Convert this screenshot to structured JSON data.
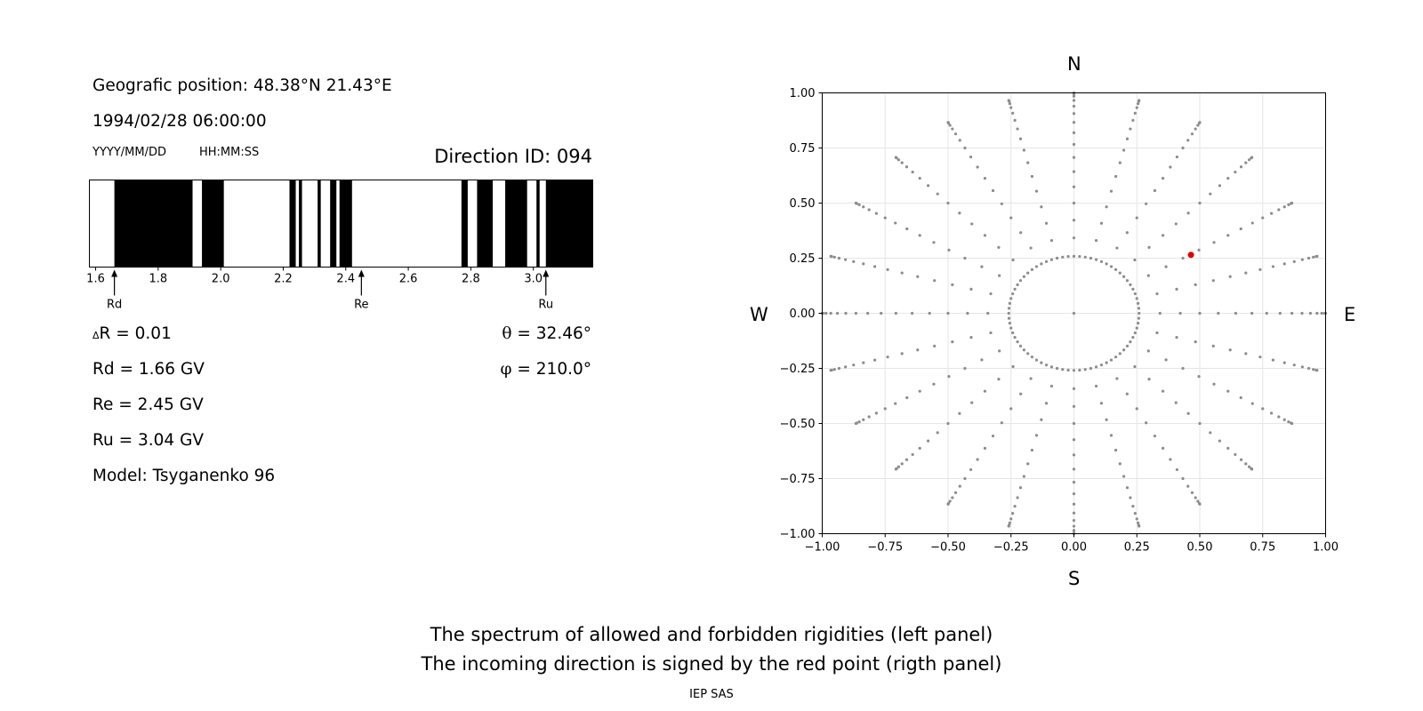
{
  "info": {
    "position": "Geografic position: 48.38°N 21.43°E",
    "datetime": "1994/02/28 06:00:00",
    "date_format": "YYYY/MM/DD",
    "time_format": "HH:MM:SS",
    "direction_id": "Direction ID: 094"
  },
  "params": {
    "dr_symbol": "Δ",
    "dr": "R = 0.01",
    "rd": "Rd = 1.66 GV",
    "re": "Re = 2.45 GV",
    "ru": "Ru = 3.04 GV",
    "model": "Model: Tsyganenko 96",
    "theta_symbol": "θ",
    "theta": " = 32.46°",
    "phi_symbol": "φ",
    "phi": " = 210.0°"
  },
  "caption": {
    "line1": "The spectrum of allowed and forbidden rigidities (left panel)",
    "line2": "The incoming direction is signed by the red point (rigth panel)",
    "footer": "IEP SAS"
  },
  "chart_data": [
    {
      "type": "bar",
      "subtype": "rigidity-spectrum",
      "xlim": [
        1.58,
        3.19
      ],
      "xticks": [
        1.6,
        1.8,
        2.0,
        2.2,
        2.4,
        2.6,
        2.8,
        3.0
      ],
      "forbidden_bands": [
        [
          1.66,
          1.91
        ],
        [
          1.94,
          2.01
        ],
        [
          2.22,
          2.24
        ],
        [
          2.25,
          2.26
        ],
        [
          2.31,
          2.32
        ],
        [
          2.35,
          2.37
        ],
        [
          2.38,
          2.42
        ],
        [
          2.77,
          2.79
        ],
        [
          2.82,
          2.87
        ],
        [
          2.91,
          2.98
        ],
        [
          3.01,
          3.02
        ],
        [
          3.04,
          3.19
        ]
      ],
      "markers": [
        {
          "label": "Rd",
          "value": 1.66
        },
        {
          "label": "Re",
          "value": 2.45
        },
        {
          "label": "Ru",
          "value": 3.04
        }
      ],
      "colors": {
        "forbidden": "#000000",
        "allowed": "#ffffff"
      }
    },
    {
      "type": "scatter",
      "subtype": "direction-grid",
      "xlim": [
        -1,
        1
      ],
      "ylim": [
        -1,
        1
      ],
      "xticks": [
        "−1.00",
        "−0.75",
        "−0.50",
        "−0.25",
        "0.00",
        "0.25",
        "0.50",
        "0.75",
        "1.00"
      ],
      "yticks": [
        "1.00",
        "0.75",
        "0.50",
        "0.25",
        "0.00",
        "−0.25",
        "−0.50",
        "−0.75",
        "−1.00"
      ],
      "grid": true,
      "compass": {
        "north": "N",
        "south": "S",
        "west": "W",
        "east": "E"
      },
      "grid_points": {
        "azimuth_step_deg": 15,
        "zenith_step_deg": 5,
        "zenith_max_deg": 90,
        "ring_zenith_deg": 15,
        "ring_azimuth_step_deg": 5
      },
      "highlight": {
        "x": 0.465,
        "y": 0.265
      },
      "colors": {
        "points": "#8c8c8c",
        "highlight": "#e00000",
        "grid": "#e6e6e6"
      }
    }
  ]
}
